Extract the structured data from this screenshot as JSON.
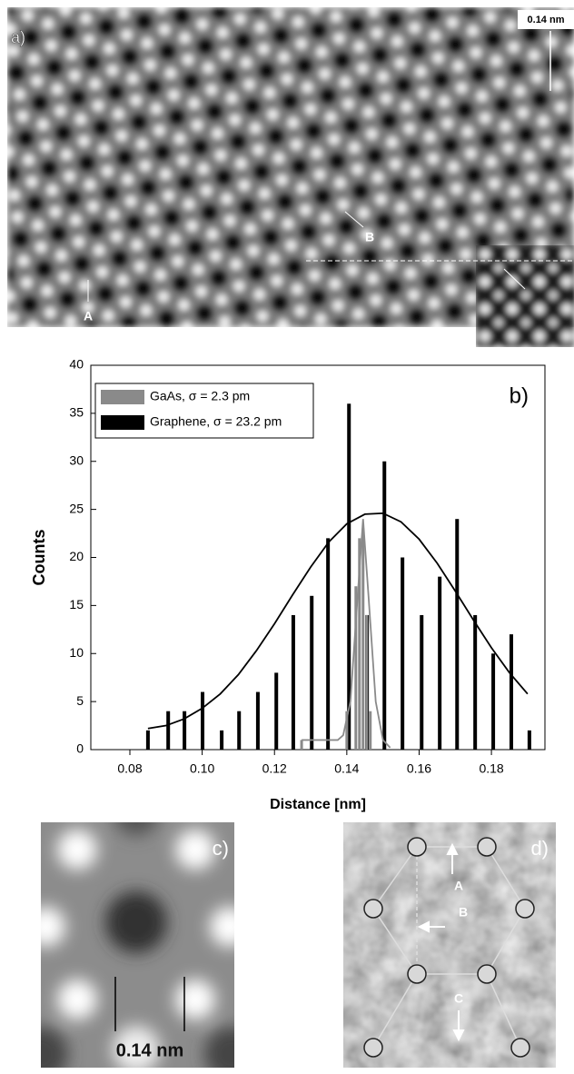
{
  "panels": {
    "a": {
      "label": "a)",
      "scale": "0.14 nm",
      "site_a": "A",
      "site_b": "B"
    },
    "c": {
      "label": "c)",
      "scale": "0.14 nm"
    },
    "d": {
      "label": "d)",
      "arrow_a": "A",
      "arrow_b": "B",
      "arrow_c": "C"
    }
  },
  "chart_data": {
    "type": "bar",
    "panel_label": "b)",
    "x_label": "Distance [nm]",
    "y_label": "Counts",
    "xlim": [
      0.0692,
      0.1948
    ],
    "ylim": [
      0,
      40
    ],
    "xticks": [
      0.08,
      {
        "value": 0.1,
        "label": "0.10"
      },
      0.12,
      0.14,
      0.16,
      0.18
    ],
    "yticks": [
      0,
      5,
      10,
      15,
      20,
      25,
      30,
      35,
      40
    ],
    "series": [
      {
        "name": "GaAs, σ = 2.3 pm",
        "color": "#8a8a8a",
        "x": [
          0.1275,
          0.14,
          0.1425,
          0.1435,
          0.1445,
          0.1455,
          0.1465
        ],
        "values": [
          1,
          4,
          17,
          22,
          23,
          14,
          4
        ]
      },
      {
        "name": "Graphene, σ = 23.2 pm",
        "color": "#000000",
        "x": [
          0.085,
          0.0906,
          0.0951,
          0.1001,
          0.1054,
          0.1102,
          0.1154,
          0.1205,
          0.1252,
          0.1303,
          0.1348,
          0.1406,
          0.1456,
          0.1504,
          0.1554,
          0.1607,
          0.1657,
          0.1705,
          0.1755,
          0.1805,
          0.1855,
          0.1905
        ],
        "values": [
          2,
          4,
          4,
          6,
          2,
          4,
          6,
          8,
          14,
          16,
          22,
          36,
          14,
          30,
          20,
          14,
          18,
          24,
          14,
          10,
          12,
          2
        ]
      }
    ],
    "fits": [
      {
        "color": "#8a8a8a",
        "x": [
          0.1275,
          0.1375,
          0.139,
          0.141,
          0.143,
          0.1445,
          0.146,
          0.148,
          0.15,
          0.152
        ],
        "values": [
          1,
          1,
          1.5,
          5,
          16,
          24,
          16,
          5,
          1,
          0.2
        ]
      },
      {
        "color": "#000000",
        "x": [
          0.085,
          0.09,
          0.095,
          0.1,
          0.105,
          0.11,
          0.115,
          0.12,
          0.125,
          0.13,
          0.135,
          0.14,
          0.145,
          0.15,
          0.155,
          0.16,
          0.165,
          0.17,
          0.175,
          0.18,
          0.185,
          0.19
        ],
        "values": [
          2.2,
          2.5,
          3.2,
          4.3,
          5.8,
          7.8,
          10.3,
          13.1,
          16.1,
          19,
          21.6,
          23.5,
          24.5,
          24.6,
          23.7,
          21.9,
          19.4,
          16.5,
          13.5,
          10.6,
          8,
          5.8
        ]
      }
    ],
    "legend": "upper left"
  }
}
